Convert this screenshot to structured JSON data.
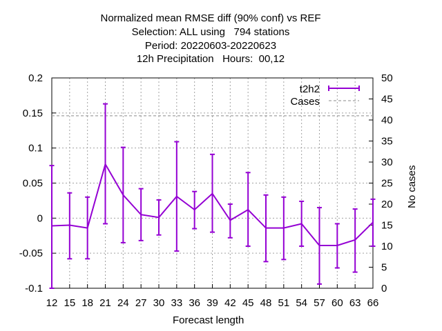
{
  "chart_data": {
    "type": "line",
    "title_lines": [
      "Normalized mean RMSE diff (90% conf) vs REF",
      "Selection: ALL using   794 stations",
      "Period: 20220603-20220623",
      "12h Precipitation   Hours:  00,12"
    ],
    "xlabel": "Forecast length",
    "ylabel": "",
    "y2label": "No cases",
    "x": [
      12,
      15,
      18,
      21,
      24,
      27,
      30,
      33,
      36,
      39,
      42,
      45,
      48,
      51,
      54,
      57,
      60,
      63,
      66
    ],
    "xlim": [
      12,
      66
    ],
    "ylim": [
      -0.1,
      0.2
    ],
    "y2lim": [
      0,
      50
    ],
    "y_ticks": [
      "-0.1",
      "-0.05",
      "0",
      "0.05",
      "0.1",
      "0.15",
      "0.2"
    ],
    "y2_ticks": [
      "0",
      "5",
      "10",
      "15",
      "20",
      "25",
      "30",
      "35",
      "40",
      "45",
      "50"
    ],
    "x_ticks": [
      "12",
      "15",
      "18",
      "21",
      "24",
      "27",
      "30",
      "33",
      "36",
      "39",
      "42",
      "45",
      "48",
      "51",
      "54",
      "57",
      "60",
      "63",
      "66"
    ],
    "grid": true,
    "legend_position": "top-right",
    "series": [
      {
        "name": "t2h2",
        "color": "#9400d3",
        "values": [
          -0.011,
          -0.01,
          -0.014,
          0.077,
          0.033,
          0.005,
          0.001,
          0.031,
          0.012,
          0.035,
          -0.003,
          0.012,
          -0.014,
          -0.014,
          -0.008,
          -0.039,
          -0.039,
          -0.031,
          -0.006
        ],
        "err_low": [
          -0.1,
          -0.058,
          -0.058,
          -0.008,
          -0.035,
          -0.032,
          -0.024,
          -0.047,
          -0.015,
          -0.02,
          -0.028,
          -0.04,
          -0.062,
          -0.059,
          -0.04,
          -0.094,
          -0.071,
          -0.077,
          -0.04
        ],
        "err_high": [
          0.075,
          0.036,
          0.03,
          0.163,
          0.101,
          0.042,
          0.026,
          0.109,
          0.038,
          0.091,
          0.02,
          0.065,
          0.033,
          0.03,
          0.024,
          0.015,
          -0.008,
          0.013,
          0.027
        ]
      },
      {
        "name": "Cases",
        "color": "#a0a0a0",
        "axis": "y2",
        "style": "dashed",
        "constant": 41
      }
    ]
  }
}
